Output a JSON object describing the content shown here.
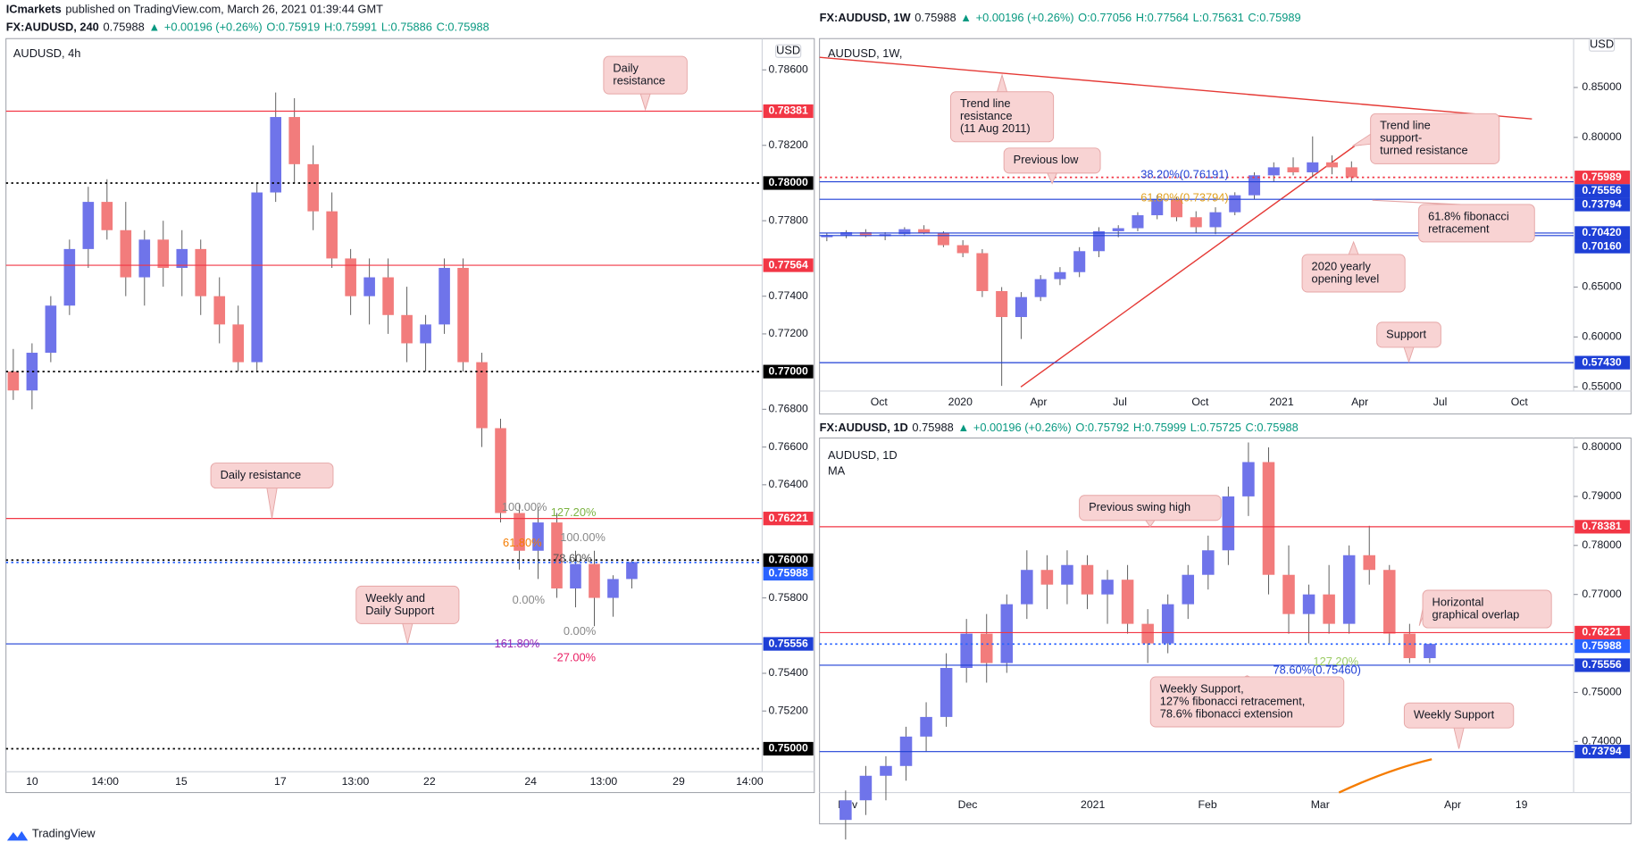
{
  "header": {
    "publisher": "ICmarkets",
    "text": "published on TradingView.com, March 26, 2021 01:39:44 GMT"
  },
  "footer": {
    "brand": "TradingView"
  },
  "candle_colors": {
    "up": "#6f74ea",
    "down": "#f27c7c"
  },
  "panels": [
    {
      "info": [
        "FX:AUDUSD, 240",
        "0.75988",
        "▲",
        "+0.00196 (+0.26%)",
        "O:0.75919",
        "H:0.75991",
        "L:0.75886",
        "C:0.75988"
      ],
      "title": "AUDUSD, 4h",
      "currency": "USD",
      "ylim": [
        0.74878,
        0.78766
      ],
      "yticks": [
        {
          "value": 0.786,
          "label": "0.78600"
        },
        {
          "value": 0.782,
          "label": "0.78200"
        },
        {
          "value": 0.778,
          "label": "0.77800"
        },
        {
          "value": 0.774,
          "label": "0.77400"
        },
        {
          "value": 0.772,
          "label": "0.77200"
        },
        {
          "value": 0.768,
          "label": "0.76800"
        },
        {
          "value": 0.766,
          "label": "0.76600"
        },
        {
          "value": 0.764,
          "label": "0.76400"
        },
        {
          "value": 0.758,
          "label": "0.75800"
        },
        {
          "value": 0.754,
          "label": "0.75400"
        },
        {
          "value": 0.752,
          "label": "0.75200"
        }
      ],
      "times": [
        "10",
        "14:00",
        "15",
        "17",
        "13:00",
        "22",
        "24",
        "13:00",
        "29",
        "14:00"
      ],
      "levels": [
        {
          "value": 0.78381,
          "label": "0.78381",
          "color": "#f23645",
          "style": "solid"
        },
        {
          "value": 0.78,
          "label": "0.78000",
          "color": "#000000",
          "style": "dotted"
        },
        {
          "value": 0.77564,
          "label": "0.77564",
          "color": "#f23645",
          "style": "solid"
        },
        {
          "value": 0.77,
          "label": "0.77000",
          "color": "#000000",
          "style": "dotted"
        },
        {
          "value": 0.76221,
          "label": "0.76221",
          "color": "#f23645",
          "style": "solid"
        },
        {
          "value": 0.76,
          "label": "0.76000",
          "color": "#000000",
          "style": "dotted"
        },
        {
          "value": 0.75988,
          "label": "0.75988",
          "color": "#2962ff",
          "style": "dotted"
        },
        {
          "value": 0.75556,
          "label": "0.75556",
          "color": "#1e3fd6",
          "style": "solid"
        },
        {
          "value": 0.75,
          "label": "0.75000",
          "color": "#000000",
          "style": "dotted"
        }
      ],
      "candles": [
        [
          0.77,
          0.7712,
          0.7685,
          0.769
        ],
        [
          0.769,
          0.7715,
          0.768,
          0.771
        ],
        [
          0.771,
          0.774,
          0.7705,
          0.7735
        ],
        [
          0.7735,
          0.777,
          0.773,
          0.7765
        ],
        [
          0.7765,
          0.7798,
          0.7755,
          0.779
        ],
        [
          0.779,
          0.7802,
          0.777,
          0.7775
        ],
        [
          0.7775,
          0.779,
          0.774,
          0.775
        ],
        [
          0.775,
          0.7775,
          0.7735,
          0.777
        ],
        [
          0.777,
          0.778,
          0.7745,
          0.7755
        ],
        [
          0.7755,
          0.7775,
          0.774,
          0.7765
        ],
        [
          0.7765,
          0.777,
          0.773,
          0.774
        ],
        [
          0.774,
          0.775,
          0.7715,
          0.7725
        ],
        [
          0.7725,
          0.7735,
          0.77,
          0.7705
        ],
        [
          0.7705,
          0.78,
          0.77,
          0.7795
        ],
        [
          0.7795,
          0.7848,
          0.779,
          0.7835
        ],
        [
          0.7835,
          0.7845,
          0.78,
          0.781
        ],
        [
          0.781,
          0.782,
          0.7775,
          0.7785
        ],
        [
          0.7785,
          0.7795,
          0.7755,
          0.776
        ],
        [
          0.776,
          0.7765,
          0.773,
          0.774
        ],
        [
          0.774,
          0.776,
          0.7725,
          0.775
        ],
        [
          0.775,
          0.776,
          0.772,
          0.773
        ],
        [
          0.773,
          0.7745,
          0.7705,
          0.7715
        ],
        [
          0.7715,
          0.773,
          0.77,
          0.7725
        ],
        [
          0.7725,
          0.776,
          0.772,
          0.7755
        ],
        [
          0.7755,
          0.776,
          0.77,
          0.7705
        ],
        [
          0.7705,
          0.771,
          0.766,
          0.767
        ],
        [
          0.767,
          0.7675,
          0.762,
          0.7625
        ],
        [
          0.7625,
          0.763,
          0.7595,
          0.7605
        ],
        [
          0.7605,
          0.7628,
          0.759,
          0.762
        ],
        [
          0.762,
          0.7625,
          0.758,
          0.7585
        ],
        [
          0.7585,
          0.7605,
          0.7575,
          0.7598
        ],
        [
          0.7598,
          0.7605,
          0.7565,
          0.758
        ],
        [
          0.758,
          0.7592,
          0.757,
          0.759
        ],
        [
          0.759,
          0.76,
          0.7585,
          0.7599
        ]
      ],
      "annotations": [
        {
          "lines": [
            "Daily",
            "resistance"
          ]
        },
        {
          "lines": [
            "Daily resistance"
          ]
        },
        {
          "lines": [
            "Weekly and",
            "Daily Support"
          ]
        }
      ],
      "fibs": [
        "100.00%",
        "127.20%",
        "61.80%",
        "100.00%",
        "78.60%",
        "0.00%",
        "0.00%",
        "161.80%",
        "-27.00%"
      ]
    },
    {
      "info": [
        "FX:AUDUSD, 1W",
        "0.75988",
        "▲",
        "+0.00196 (+0.26%)",
        "O:0.77056",
        "H:0.77564",
        "L:0.75631",
        "C:0.75989"
      ],
      "title": "AUDUSD, 1W,",
      "currency": "USD",
      "ylim": [
        0.5458,
        0.899
      ],
      "yticks": [
        {
          "value": 0.85,
          "label": "0.85000"
        },
        {
          "value": 0.8,
          "label": "0.80000"
        },
        {
          "value": 0.65,
          "label": "0.65000"
        },
        {
          "value": 0.6,
          "label": "0.60000"
        },
        {
          "value": 0.55,
          "label": "0.55000"
        }
      ],
      "times": [
        "Oct",
        "2020",
        "Apr",
        "Jul",
        "Oct",
        "2021",
        "Apr",
        "Jul",
        "Oct"
      ],
      "levels": [
        {
          "value": 0.75989,
          "label": "0.75989",
          "color": "#f23645",
          "style": "dotted"
        },
        {
          "value": 0.75556,
          "label": "0.75556",
          "color": "#1e3fd6",
          "style": "solid"
        },
        {
          "value": 0.73794,
          "label": "0.73794",
          "color": "#1e3fd6",
          "style": "solid"
        },
        {
          "value": 0.7042,
          "label": "0.70420",
          "color": "#1e3fd6",
          "style": "solid"
        },
        {
          "value": 0.7016,
          "label": "0.70160",
          "color": "#1e3fd6",
          "style": "solid"
        },
        {
          "value": 0.5743,
          "label": "0.57430",
          "color": "#1e3fd6",
          "style": "solid"
        }
      ],
      "candles": [
        [
          0.7,
          0.704,
          0.696,
          0.702
        ],
        [
          0.702,
          0.707,
          0.699,
          0.705
        ],
        [
          0.705,
          0.708,
          0.7,
          0.701
        ],
        [
          0.701,
          0.705,
          0.697,
          0.703
        ],
        [
          0.703,
          0.71,
          0.701,
          0.708
        ],
        [
          0.708,
          0.712,
          0.703,
          0.704
        ],
        [
          0.704,
          0.706,
          0.69,
          0.692
        ],
        [
          0.692,
          0.697,
          0.68,
          0.684
        ],
        [
          0.684,
          0.688,
          0.64,
          0.646
        ],
        [
          0.646,
          0.65,
          0.551,
          0.62
        ],
        [
          0.62,
          0.645,
          0.598,
          0.64
        ],
        [
          0.64,
          0.662,
          0.636,
          0.658
        ],
        [
          0.658,
          0.67,
          0.652,
          0.665
        ],
        [
          0.665,
          0.69,
          0.66,
          0.686
        ],
        [
          0.686,
          0.71,
          0.68,
          0.706
        ],
        [
          0.706,
          0.712,
          0.7,
          0.709
        ],
        [
          0.709,
          0.725,
          0.706,
          0.722
        ],
        [
          0.722,
          0.742,
          0.718,
          0.738
        ],
        [
          0.738,
          0.74,
          0.716,
          0.72
        ],
        [
          0.72,
          0.726,
          0.704,
          0.71
        ],
        [
          0.71,
          0.73,
          0.703,
          0.725
        ],
        [
          0.725,
          0.745,
          0.722,
          0.742
        ],
        [
          0.742,
          0.765,
          0.738,
          0.762
        ],
        [
          0.762,
          0.775,
          0.756,
          0.77
        ],
        [
          0.77,
          0.78,
          0.762,
          0.765
        ],
        [
          0.765,
          0.801,
          0.76,
          0.775
        ],
        [
          0.775,
          0.782,
          0.763,
          0.77
        ],
        [
          0.77,
          0.776,
          0.756,
          0.76
        ]
      ],
      "annotations": [
        {
          "lines": [
            "Trend line",
            "resistance",
            "(11 Aug 2011)"
          ]
        },
        {
          "lines": [
            "Previous low"
          ]
        },
        {
          "lines": [
            "Trend line",
            "support-",
            "turned resistance"
          ]
        },
        {
          "lines": [
            "61.8% fibonacci",
            "retracement"
          ]
        },
        {
          "lines": [
            "2020 yearly",
            "opening level"
          ]
        },
        {
          "lines": [
            "Support"
          ]
        }
      ],
      "fibs": [
        "38.20%(0.76191)",
        "61.80%(0.73794)"
      ]
    },
    {
      "info": [
        "FX:AUDUSD, 1D",
        "0.75988",
        "▲",
        "+0.00196 (+0.26%)",
        "O:0.75792",
        "H:0.75999",
        "L:0.75725",
        "C:0.75988"
      ],
      "title": "AUDUSD, 1D",
      "indicator": "MA",
      "ylim": [
        0.72957,
        0.80191
      ],
      "yticks": [
        {
          "value": 0.8,
          "label": "0.80000"
        },
        {
          "value": 0.79,
          "label": "0.79000"
        },
        {
          "value": 0.78,
          "label": "0.78000"
        },
        {
          "value": 0.77,
          "label": "0.77000"
        },
        {
          "value": 0.75,
          "label": "0.75000"
        },
        {
          "value": 0.74,
          "label": "0.74000"
        }
      ],
      "times": [
        "Nov",
        "Dec",
        "2021",
        "Feb",
        "Mar",
        "Apr",
        "19"
      ],
      "levels": [
        {
          "value": 0.78381,
          "label": "0.78381",
          "color": "#f23645",
          "style": "solid"
        },
        {
          "value": 0.76221,
          "label": "0.76221",
          "color": "#f23645",
          "style": "solid"
        },
        {
          "value": 0.75988,
          "label": "0.75988",
          "color": "#2962ff",
          "style": "dotted"
        },
        {
          "value": 0.75556,
          "label": "0.75556",
          "color": "#1e3fd6",
          "style": "solid"
        },
        {
          "value": 0.73794,
          "label": "0.73794",
          "color": "#1e3fd6",
          "style": "solid"
        }
      ],
      "candles": [
        [
          0.724,
          0.73,
          0.72,
          0.728
        ],
        [
          0.728,
          0.735,
          0.725,
          0.733
        ],
        [
          0.733,
          0.737,
          0.728,
          0.735
        ],
        [
          0.735,
          0.743,
          0.732,
          0.741
        ],
        [
          0.741,
          0.748,
          0.738,
          0.745
        ],
        [
          0.745,
          0.758,
          0.743,
          0.755
        ],
        [
          0.755,
          0.765,
          0.752,
          0.762
        ],
        [
          0.762,
          0.766,
          0.752,
          0.756
        ],
        [
          0.756,
          0.77,
          0.754,
          0.768
        ],
        [
          0.768,
          0.779,
          0.765,
          0.775
        ],
        [
          0.775,
          0.778,
          0.767,
          0.772
        ],
        [
          0.772,
          0.779,
          0.768,
          0.776
        ],
        [
          0.776,
          0.778,
          0.767,
          0.77
        ],
        [
          0.77,
          0.775,
          0.764,
          0.773
        ],
        [
          0.773,
          0.776,
          0.762,
          0.764
        ],
        [
          0.764,
          0.767,
          0.756,
          0.76
        ],
        [
          0.76,
          0.77,
          0.758,
          0.768
        ],
        [
          0.768,
          0.776,
          0.765,
          0.774
        ],
        [
          0.774,
          0.782,
          0.771,
          0.779
        ],
        [
          0.779,
          0.792,
          0.776,
          0.79
        ],
        [
          0.79,
          0.801,
          0.786,
          0.797
        ],
        [
          0.797,
          0.8,
          0.77,
          0.774
        ],
        [
          0.774,
          0.78,
          0.762,
          0.766
        ],
        [
          0.766,
          0.772,
          0.76,
          0.77
        ],
        [
          0.77,
          0.776,
          0.762,
          0.764
        ],
        [
          0.764,
          0.78,
          0.762,
          0.778
        ],
        [
          0.778,
          0.784,
          0.772,
          0.775
        ],
        [
          0.775,
          0.776,
          0.76,
          0.762
        ],
        [
          0.762,
          0.764,
          0.756,
          0.757
        ],
        [
          0.757,
          0.76,
          0.756,
          0.7599
        ]
      ],
      "annotations": [
        {
          "lines": [
            "Previous swing high"
          ]
        },
        {
          "lines": [
            "Horizontal",
            "graphical overlap"
          ]
        },
        {
          "lines": [
            "Weekly Support,",
            "127% fibonacci retracement,",
            "78.6% fibonacci extension"
          ]
        },
        {
          "lines": [
            "Weekly Support"
          ]
        }
      ],
      "fibs": [
        "127.20%",
        "78.60%(0.75460)"
      ]
    }
  ]
}
